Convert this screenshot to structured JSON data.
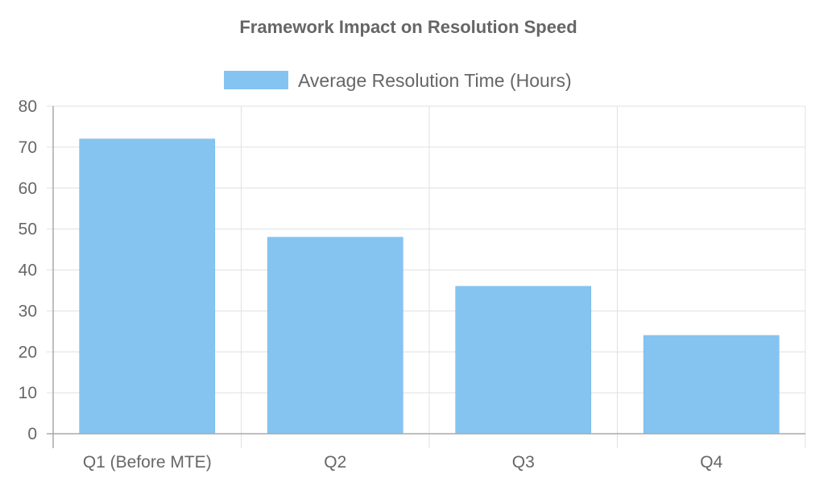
{
  "chart_data": {
    "type": "bar",
    "title": "Framework Impact on Resolution Speed",
    "categories": [
      "Q1 (Before MTE)",
      "Q2",
      "Q3",
      "Q4"
    ],
    "series": [
      {
        "name": "Average Resolution Time (Hours)",
        "values": [
          72,
          48,
          36,
          24
        ],
        "color": "#85c4f1",
        "border_color": "#6ab2e8"
      }
    ],
    "ylim": [
      0,
      80
    ],
    "yticks": [
      0,
      10,
      20,
      30,
      40,
      50,
      60,
      70,
      80
    ],
    "grid": true,
    "legend_position": "top"
  }
}
